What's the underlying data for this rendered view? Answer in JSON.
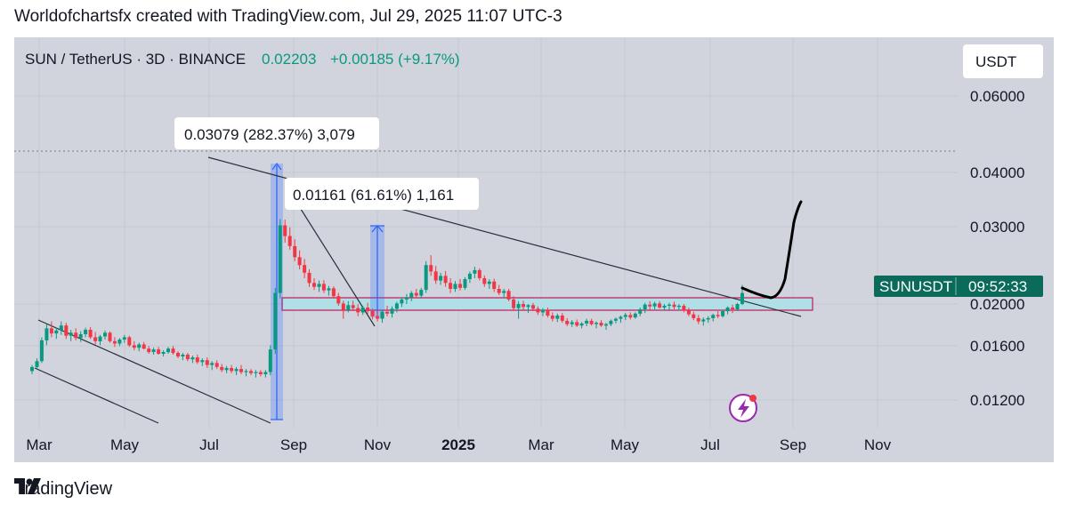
{
  "header": {
    "credit": "Worldofchartsfx created with TradingView.com, Jul 29, 2025 11:07 UTC-3"
  },
  "symbol_bar": {
    "symbol": "SUN / TetherUS · 3D · BINANCE",
    "price": "0.02203",
    "change": "+0.00185 (+9.17%)"
  },
  "currency_button": "USDT",
  "price_tag": {
    "ticker": "SUNUSDT",
    "countdown": "09:52:33"
  },
  "annotations": {
    "label_1": "0.03079 (282.37%) 3,079",
    "label_2": "0.01161 (61.61%) 1,161"
  },
  "footer": {
    "brand": "TradingView"
  },
  "colors": {
    "up": "#089981",
    "down": "#f23645",
    "zone_fill": "#b2dfe6",
    "zone_border": "#c2185b",
    "panel": "#d1d4dc",
    "accent": "#9c27b0"
  },
  "icons": {
    "logo": "tradingview-logo-icon",
    "lightning": "lightning-icon"
  },
  "chart_data": {
    "type": "candlestick",
    "title": "SUN / TetherUS · 3D · BINANCE",
    "x_ticks": [
      "Mar",
      "May",
      "Jul",
      "Sep",
      "Nov",
      "2025",
      "Mar",
      "May",
      "Jul",
      "Sep",
      "Nov"
    ],
    "y_ticks": [
      "0.06000",
      "0.04000",
      "0.03000",
      "0.02000",
      "0.01600",
      "0.01200"
    ],
    "y_scale": "log",
    "last_price": 0.02203,
    "change": 0.00185,
    "change_pct": 9.17,
    "support_zone": [
      0.01955,
      0.02055
    ],
    "measurements": [
      {
        "label": "0.03079 (282.37%) 3,079",
        "from": 0.0109,
        "to": 0.0417
      },
      {
        "label": "0.01161 (61.61%) 1,161",
        "from": 0.0188,
        "to": 0.0304
      }
    ],
    "ohlc": [
      [
        0.0112,
        0.0118,
        0.0109,
        0.0116
      ],
      [
        0.0116,
        0.0125,
        0.0114,
        0.0122
      ],
      [
        0.0122,
        0.015,
        0.012,
        0.0146
      ],
      [
        0.0146,
        0.0168,
        0.014,
        0.0162
      ],
      [
        0.0162,
        0.0172,
        0.015,
        0.0155
      ],
      [
        0.0155,
        0.0163,
        0.0148,
        0.0159
      ],
      [
        0.0159,
        0.0172,
        0.0153,
        0.0166
      ],
      [
        0.0166,
        0.017,
        0.0148,
        0.0152
      ],
      [
        0.0152,
        0.016,
        0.0145,
        0.0156
      ],
      [
        0.0156,
        0.0162,
        0.0146,
        0.0149
      ],
      [
        0.0149,
        0.0158,
        0.0144,
        0.0154
      ],
      [
        0.0154,
        0.0163,
        0.015,
        0.016
      ],
      [
        0.016,
        0.0164,
        0.0148,
        0.015
      ],
      [
        0.015,
        0.0157,
        0.0141,
        0.0145
      ],
      [
        0.0145,
        0.0153,
        0.014,
        0.0151
      ],
      [
        0.0151,
        0.0159,
        0.0147,
        0.0156
      ],
      [
        0.0156,
        0.0158,
        0.0143,
        0.0145
      ],
      [
        0.0145,
        0.015,
        0.0138,
        0.0142
      ],
      [
        0.0142,
        0.0149,
        0.0139,
        0.0147
      ],
      [
        0.0147,
        0.0153,
        0.0143,
        0.015
      ],
      [
        0.015,
        0.0152,
        0.0138,
        0.014
      ],
      [
        0.014,
        0.0145,
        0.0134,
        0.0137
      ],
      [
        0.0137,
        0.0143,
        0.0133,
        0.0141
      ],
      [
        0.0141,
        0.0144,
        0.0135,
        0.0136
      ],
      [
        0.0136,
        0.0139,
        0.013,
        0.0132
      ],
      [
        0.0132,
        0.0137,
        0.0129,
        0.0135
      ],
      [
        0.0135,
        0.0138,
        0.0129,
        0.013
      ],
      [
        0.013,
        0.0134,
        0.0127,
        0.0132
      ],
      [
        0.0132,
        0.0138,
        0.013,
        0.0136
      ],
      [
        0.0136,
        0.0139,
        0.0129,
        0.0131
      ],
      [
        0.0131,
        0.0133,
        0.0125,
        0.0127
      ],
      [
        0.0127,
        0.0131,
        0.0123,
        0.0129
      ],
      [
        0.0129,
        0.0131,
        0.0122,
        0.0124
      ],
      [
        0.0124,
        0.0128,
        0.012,
        0.0126
      ],
      [
        0.0126,
        0.0129,
        0.0119,
        0.0121
      ],
      [
        0.0121,
        0.0125,
        0.0117,
        0.0123
      ],
      [
        0.0123,
        0.0126,
        0.0115,
        0.0118
      ],
      [
        0.0118,
        0.0122,
        0.0113,
        0.012
      ],
      [
        0.012,
        0.0123,
        0.0114,
        0.0116
      ],
      [
        0.0116,
        0.0119,
        0.0111,
        0.0113
      ],
      [
        0.0113,
        0.0117,
        0.011,
        0.0115
      ],
      [
        0.0115,
        0.0118,
        0.011,
        0.0112
      ],
      [
        0.0112,
        0.0116,
        0.0108,
        0.0114
      ],
      [
        0.0114,
        0.0118,
        0.0109,
        0.0111
      ],
      [
        0.0111,
        0.0114,
        0.0107,
        0.0112
      ],
      [
        0.0112,
        0.0114,
        0.0108,
        0.011
      ],
      [
        0.011,
        0.0113,
        0.0106,
        0.0111
      ],
      [
        0.0111,
        0.0113,
        0.0107,
        0.0109
      ],
      [
        0.0109,
        0.0113,
        0.0106,
        0.0111
      ],
      [
        0.0111,
        0.014,
        0.0108,
        0.0135
      ],
      [
        0.0135,
        0.023,
        0.013,
        0.022
      ],
      [
        0.022,
        0.0417,
        0.021,
        0.0395
      ],
      [
        0.0395,
        0.0415,
        0.034,
        0.036
      ],
      [
        0.036,
        0.0388,
        0.032,
        0.033
      ],
      [
        0.033,
        0.035,
        0.029,
        0.03
      ],
      [
        0.03,
        0.0318,
        0.027,
        0.028
      ],
      [
        0.028,
        0.0295,
        0.025,
        0.0262
      ],
      [
        0.0262,
        0.027,
        0.0232,
        0.024
      ],
      [
        0.024,
        0.025,
        0.0226,
        0.0232
      ],
      [
        0.0232,
        0.0245,
        0.0222,
        0.0238
      ],
      [
        0.0238,
        0.0246,
        0.022,
        0.0225
      ],
      [
        0.0225,
        0.0234,
        0.0215,
        0.0229
      ],
      [
        0.0229,
        0.0233,
        0.021,
        0.0214
      ],
      [
        0.0214,
        0.022,
        0.0197,
        0.0201
      ],
      [
        0.0201,
        0.0206,
        0.0176,
        0.019
      ],
      [
        0.019,
        0.0205,
        0.0186,
        0.0198
      ],
      [
        0.0198,
        0.0206,
        0.0188,
        0.0193
      ],
      [
        0.0193,
        0.02,
        0.018,
        0.0186
      ],
      [
        0.0186,
        0.0197,
        0.0182,
        0.0194
      ],
      [
        0.0194,
        0.0202,
        0.0183,
        0.0188
      ],
      [
        0.0188,
        0.0192,
        0.0175,
        0.018
      ],
      [
        0.018,
        0.0188,
        0.0172,
        0.0176
      ],
      [
        0.0176,
        0.019,
        0.017,
        0.0187
      ],
      [
        0.0187,
        0.0197,
        0.018,
        0.0184
      ],
      [
        0.0184,
        0.0196,
        0.0178,
        0.0192
      ],
      [
        0.0192,
        0.0204,
        0.0186,
        0.0201
      ],
      [
        0.0201,
        0.0212,
        0.0195,
        0.0208
      ],
      [
        0.0208,
        0.0218,
        0.02,
        0.0212
      ],
      [
        0.0212,
        0.0224,
        0.0205,
        0.022
      ],
      [
        0.022,
        0.0228,
        0.021,
        0.0215
      ],
      [
        0.0215,
        0.023,
        0.021,
        0.0226
      ],
      [
        0.0226,
        0.029,
        0.022,
        0.028
      ],
      [
        0.028,
        0.0305,
        0.0255,
        0.0265
      ],
      [
        0.0265,
        0.0278,
        0.0238,
        0.0245
      ],
      [
        0.0245,
        0.0262,
        0.0236,
        0.0255
      ],
      [
        0.0255,
        0.0266,
        0.0232,
        0.024
      ],
      [
        0.024,
        0.025,
        0.022,
        0.0228
      ],
      [
        0.0228,
        0.0244,
        0.0222,
        0.0238
      ],
      [
        0.0238,
        0.0248,
        0.0225,
        0.023
      ],
      [
        0.023,
        0.0252,
        0.0226,
        0.0248
      ],
      [
        0.0248,
        0.0265,
        0.024,
        0.026
      ],
      [
        0.026,
        0.0276,
        0.025,
        0.0268
      ],
      [
        0.0268,
        0.0272,
        0.0245,
        0.025
      ],
      [
        0.025,
        0.0256,
        0.0232,
        0.0238
      ],
      [
        0.0238,
        0.0248,
        0.0228,
        0.0243
      ],
      [
        0.0243,
        0.0249,
        0.0222,
        0.0228
      ],
      [
        0.0228,
        0.0236,
        0.0216,
        0.022
      ],
      [
        0.022,
        0.0228,
        0.021,
        0.0224
      ],
      [
        0.0224,
        0.0228,
        0.0205,
        0.0208
      ],
      [
        0.0208,
        0.0214,
        0.0188,
        0.0193
      ],
      [
        0.0193,
        0.0205,
        0.0176,
        0.02
      ],
      [
        0.02,
        0.0206,
        0.019,
        0.0195
      ],
      [
        0.0195,
        0.02,
        0.0185,
        0.0198
      ],
      [
        0.0198,
        0.0202,
        0.0188,
        0.0192
      ],
      [
        0.0192,
        0.0196,
        0.0182,
        0.0186
      ],
      [
        0.0186,
        0.0193,
        0.018,
        0.019
      ],
      [
        0.019,
        0.0194,
        0.0178,
        0.0181
      ],
      [
        0.0181,
        0.0186,
        0.0172,
        0.0176
      ],
      [
        0.0176,
        0.0184,
        0.0171,
        0.0181
      ],
      [
        0.0181,
        0.0185,
        0.017,
        0.0173
      ],
      [
        0.0173,
        0.0177,
        0.0165,
        0.0168
      ],
      [
        0.0168,
        0.0174,
        0.0164,
        0.0171
      ],
      [
        0.0171,
        0.0175,
        0.0164,
        0.0166
      ],
      [
        0.0166,
        0.0171,
        0.0162,
        0.0169
      ],
      [
        0.0169,
        0.0176,
        0.0165,
        0.0173
      ],
      [
        0.0173,
        0.0176,
        0.0166,
        0.0168
      ],
      [
        0.0168,
        0.0172,
        0.0162,
        0.017
      ],
      [
        0.017,
        0.0174,
        0.0164,
        0.0166
      ],
      [
        0.0166,
        0.017,
        0.016,
        0.0168
      ],
      [
        0.0168,
        0.0175,
        0.0165,
        0.0173
      ],
      [
        0.0173,
        0.0178,
        0.0169,
        0.0176
      ],
      [
        0.0176,
        0.0181,
        0.017,
        0.0179
      ],
      [
        0.0179,
        0.0185,
        0.0174,
        0.0182
      ],
      [
        0.0182,
        0.0186,
        0.0175,
        0.0178
      ],
      [
        0.0178,
        0.0186,
        0.0176,
        0.0184
      ],
      [
        0.0184,
        0.0194,
        0.018,
        0.0191
      ],
      [
        0.0191,
        0.0202,
        0.0185,
        0.0199
      ],
      [
        0.0199,
        0.0205,
        0.019,
        0.0196
      ],
      [
        0.0196,
        0.0204,
        0.0191,
        0.0201
      ],
      [
        0.0201,
        0.0205,
        0.0192,
        0.0194
      ],
      [
        0.0194,
        0.02,
        0.0189,
        0.0197
      ],
      [
        0.0197,
        0.0202,
        0.019,
        0.0199
      ],
      [
        0.0199,
        0.0204,
        0.0191,
        0.0195
      ],
      [
        0.0195,
        0.02,
        0.0189,
        0.0197
      ],
      [
        0.0197,
        0.02,
        0.0186,
        0.0189
      ],
      [
        0.0189,
        0.0194,
        0.018,
        0.0183
      ],
      [
        0.0183,
        0.0187,
        0.0174,
        0.0177
      ],
      [
        0.0177,
        0.0182,
        0.0168,
        0.0172
      ],
      [
        0.0172,
        0.0178,
        0.0166,
        0.0175
      ],
      [
        0.0175,
        0.018,
        0.017,
        0.0177
      ],
      [
        0.0177,
        0.0184,
        0.0172,
        0.0182
      ],
      [
        0.0182,
        0.0188,
        0.0177,
        0.018
      ],
      [
        0.018,
        0.019,
        0.0178,
        0.0188
      ],
      [
        0.0188,
        0.0196,
        0.0183,
        0.0194
      ],
      [
        0.0194,
        0.0199,
        0.0185,
        0.0191
      ],
      [
        0.0191,
        0.0202,
        0.0188,
        0.02
      ],
      [
        0.02,
        0.0236,
        0.0198,
        0.022
      ]
    ]
  }
}
